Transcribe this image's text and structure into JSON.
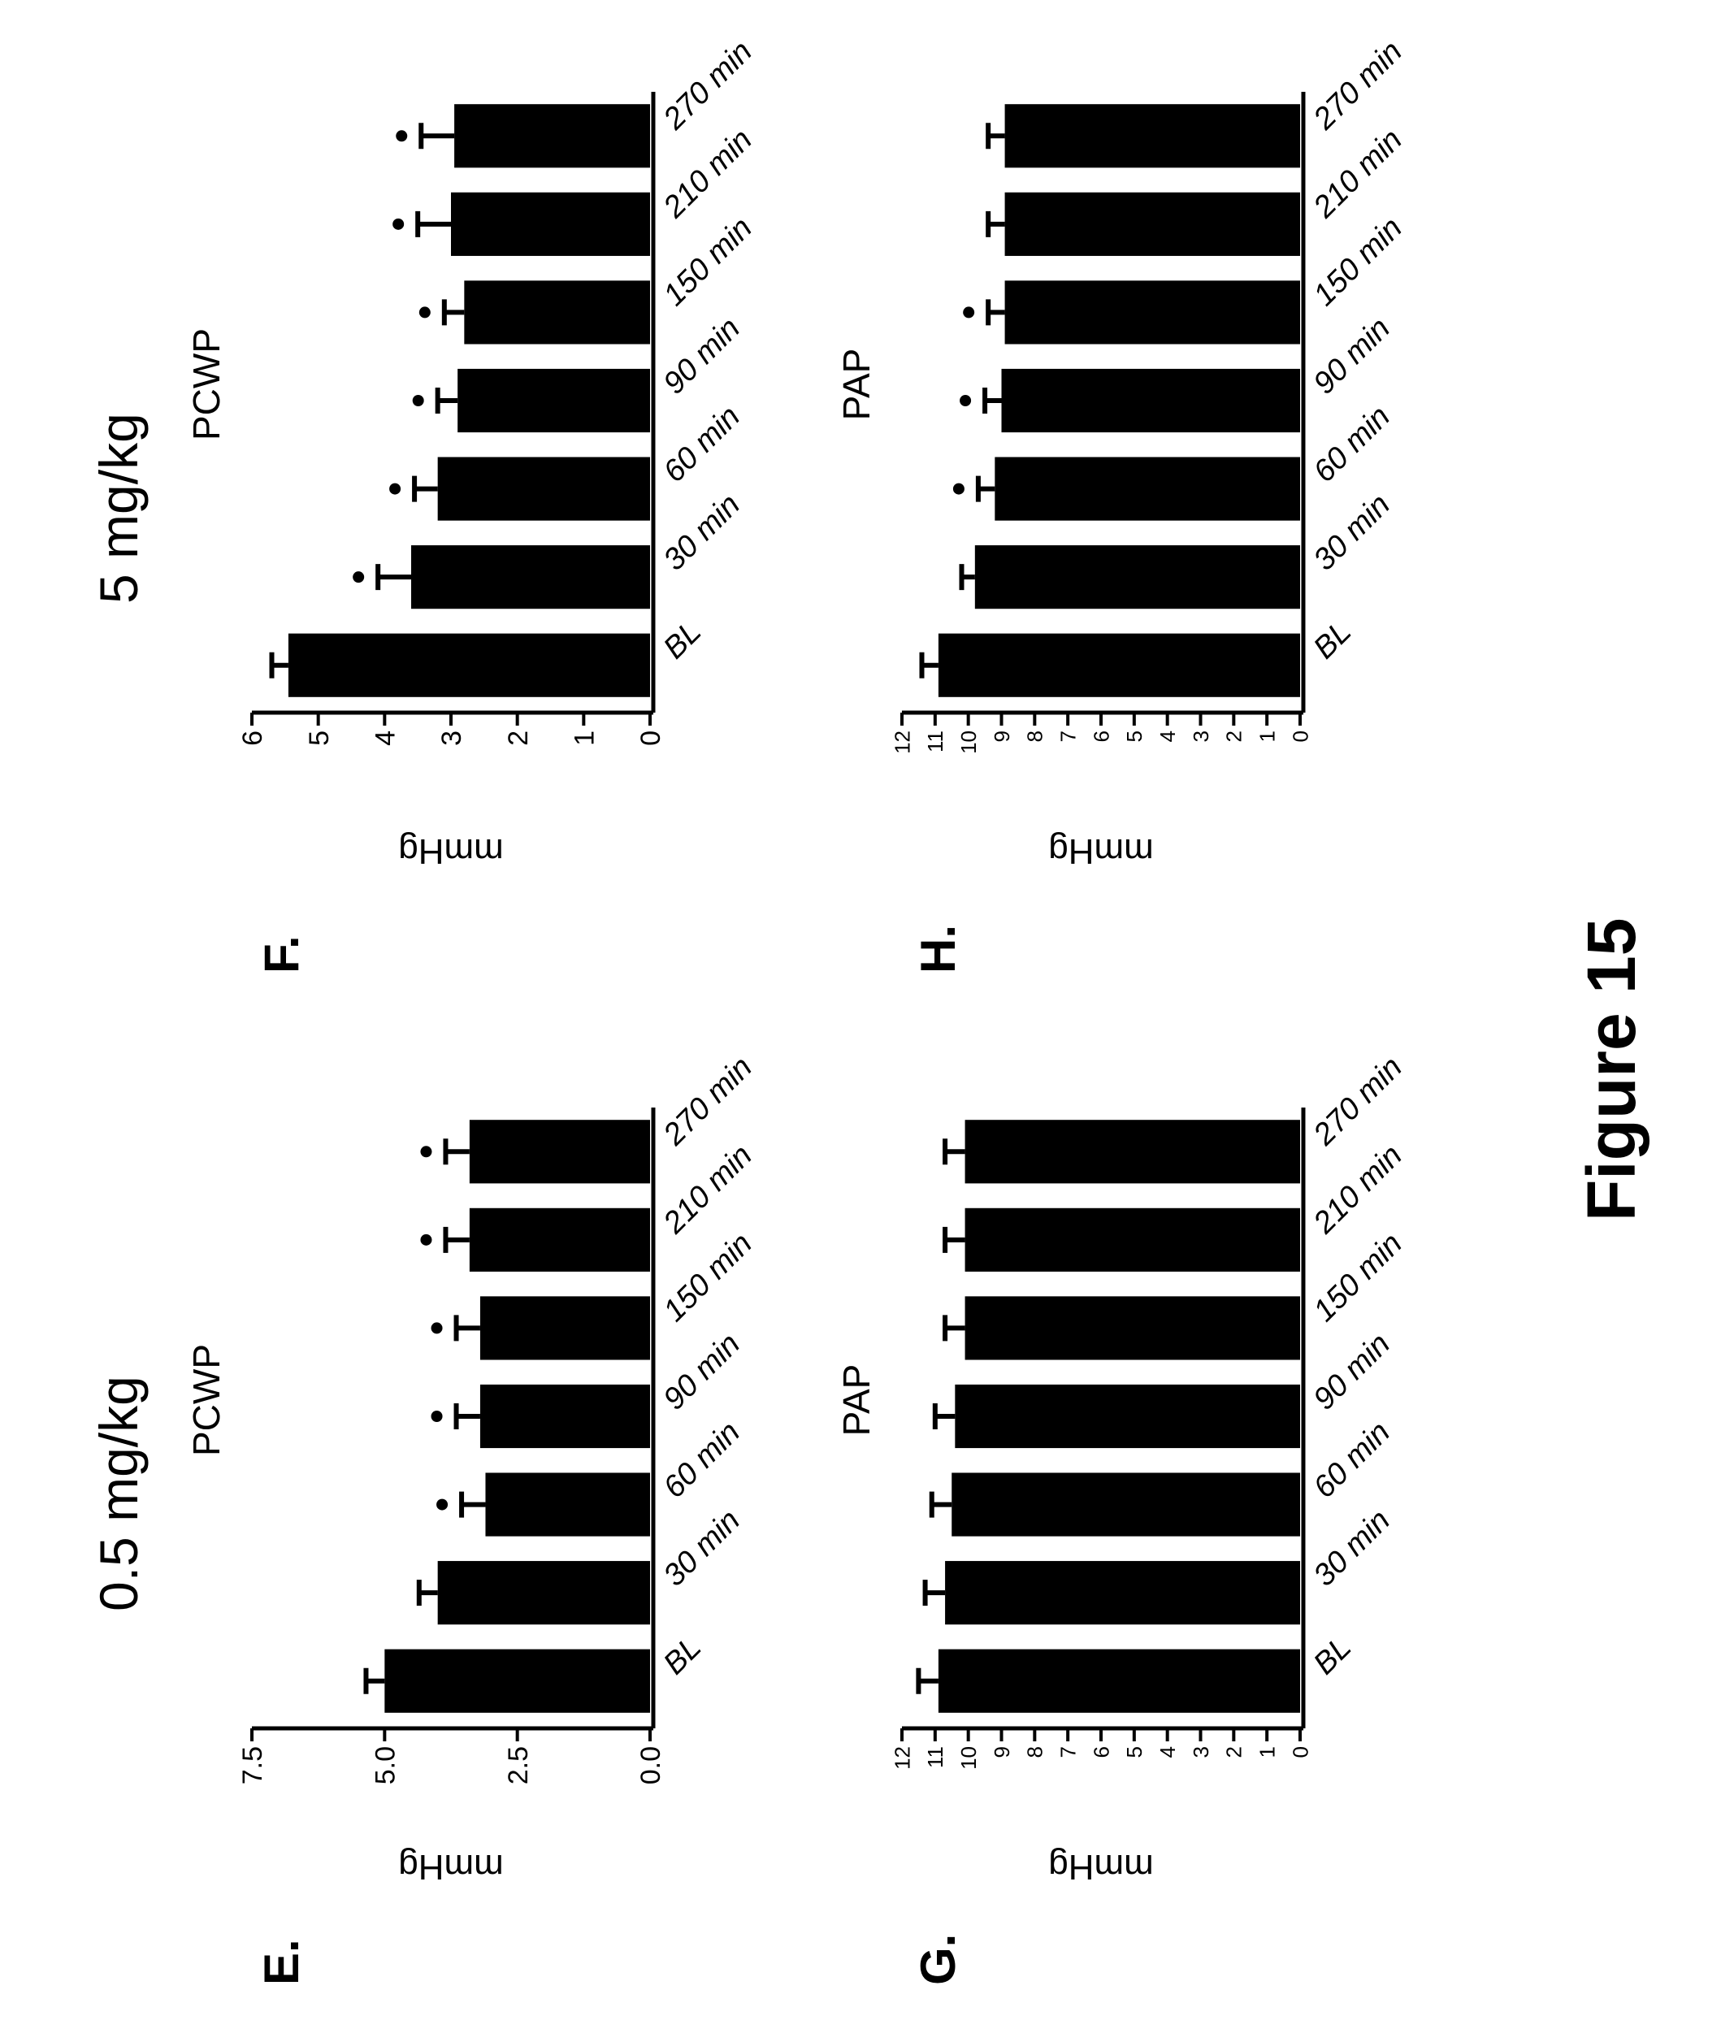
{
  "figure": {
    "caption": "Figure 15",
    "doses": [
      "0.5 mg/kg",
      "5 mg/kg"
    ]
  },
  "chart_data": [
    {
      "panel": "E.",
      "type": "bar",
      "title": "PCWP",
      "ylabel": "mmHg",
      "categories": [
        "BL",
        "30 min",
        "60 min",
        "90 min",
        "150 min",
        "210 min",
        "270 min"
      ],
      "values": [
        5.0,
        4.0,
        3.1,
        3.2,
        3.2,
        3.4,
        3.4
      ],
      "errors": [
        0.35,
        0.35,
        0.45,
        0.45,
        0.45,
        0.45,
        0.45
      ],
      "significant": [
        false,
        false,
        true,
        true,
        true,
        true,
        true
      ],
      "ylim": [
        0,
        7.5
      ],
      "yticks": [
        "0.0",
        "2.5",
        "5.0",
        "7.5"
      ],
      "ytick_values": [
        0,
        2.5,
        5.0,
        7.5
      ]
    },
    {
      "panel": "F.",
      "type": "bar",
      "title": "PCWP",
      "ylabel": "mmHg",
      "categories": [
        "BL",
        "30 min",
        "60 min",
        "90 min",
        "150 min",
        "210 min",
        "270 min"
      ],
      "values": [
        5.45,
        3.6,
        3.2,
        2.9,
        2.8,
        3.0,
        2.95
      ],
      "errors": [
        0.25,
        0.5,
        0.35,
        0.3,
        0.3,
        0.5,
        0.5
      ],
      "significant": [
        false,
        true,
        true,
        true,
        true,
        true,
        true
      ],
      "ylim": [
        0,
        6
      ],
      "yticks": [
        "0",
        "1",
        "2",
        "3",
        "4",
        "5",
        "6"
      ],
      "ytick_values": [
        0,
        1,
        2,
        3,
        4,
        5,
        6
      ]
    },
    {
      "panel": "G.",
      "type": "bar",
      "title": "PAP",
      "ylabel": "mmHg",
      "categories": [
        "BL",
        "30 min",
        "60 min",
        "90 min",
        "150 min",
        "210 min",
        "270 min"
      ],
      "values": [
        10.9,
        10.7,
        10.5,
        10.4,
        10.1,
        10.1,
        10.1
      ],
      "errors": [
        0.6,
        0.6,
        0.6,
        0.6,
        0.6,
        0.6,
        0.6
      ],
      "significant": [
        false,
        false,
        false,
        false,
        false,
        false,
        false
      ],
      "ylim": [
        0,
        12
      ],
      "yticks": [
        "0",
        "1",
        "2",
        "3",
        "4",
        "5",
        "6",
        "7",
        "8",
        "9",
        "10",
        "11",
        "12"
      ],
      "ytick_values": [
        0,
        1,
        2,
        3,
        4,
        5,
        6,
        7,
        8,
        9,
        10,
        11,
        12
      ]
    },
    {
      "panel": "H.",
      "type": "bar",
      "title": "PAP",
      "ylabel": "mmHg",
      "categories": [
        "BL",
        "30 min",
        "60 min",
        "90 min",
        "150 min",
        "210 min",
        "270 min"
      ],
      "values": [
        10.9,
        9.8,
        9.2,
        9.0,
        8.9,
        8.9,
        8.9
      ],
      "errors": [
        0.5,
        0.4,
        0.5,
        0.5,
        0.5,
        0.5,
        0.5
      ],
      "significant": [
        false,
        false,
        true,
        true,
        true,
        false,
        false
      ],
      "ylim": [
        0,
        12
      ],
      "yticks": [
        "0",
        "1",
        "2",
        "3",
        "4",
        "5",
        "6",
        "7",
        "8",
        "9",
        "10",
        "11",
        "12"
      ],
      "ytick_values": [
        0,
        1,
        2,
        3,
        4,
        5,
        6,
        7,
        8,
        9,
        10,
        11,
        12
      ]
    }
  ]
}
